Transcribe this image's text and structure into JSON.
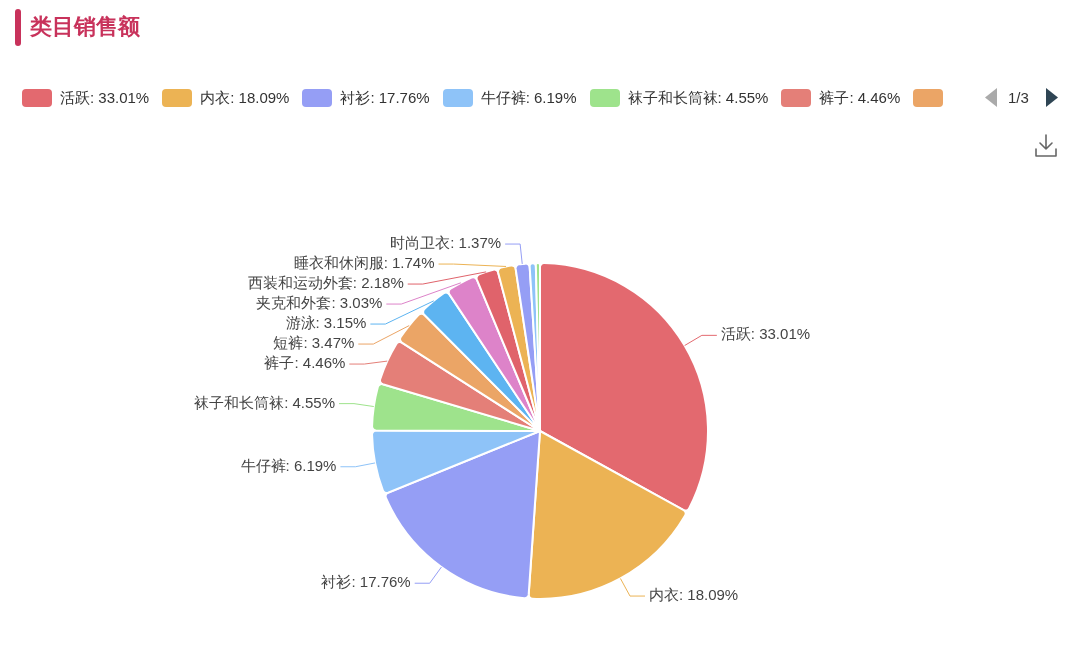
{
  "chart_data": {
    "type": "pie",
    "title": "类目销售额",
    "categories": [
      "活跃",
      "内衣",
      "衬衫",
      "牛仔裤",
      "袜子和长筒袜",
      "裤子",
      "短裤",
      "游泳",
      "夹克和外套",
      "西装和运动外套",
      "睡衣和休闲服",
      "时尚卫衣",
      null,
      null
    ],
    "values": [
      33.01,
      18.09,
      17.76,
      6.19,
      4.55,
      4.46,
      3.47,
      3.15,
      3.03,
      2.18,
      1.74,
      1.37,
      0.6,
      0.4
    ],
    "value_labels": [
      "33.01%",
      "18.09%",
      "17.76%",
      "6.19%",
      "4.55%",
      "4.46%",
      "3.47%",
      "3.15%",
      "3.03%",
      "2.18%",
      "1.74%",
      "1.37%",
      null,
      null
    ],
    "colors": [
      "#e3696f",
      "#ecb354",
      "#959ef5",
      "#8ec3f8",
      "#9ee38c",
      "#e47f78",
      "#eba566",
      "#5db4f1",
      "#dd83c9",
      "#e0636b",
      "#ecb354",
      "#959ef5",
      "#8ec3f8",
      "#9ee38c"
    ],
    "legend": "top",
    "annotations": [
      "1/3"
    ]
  }
}
